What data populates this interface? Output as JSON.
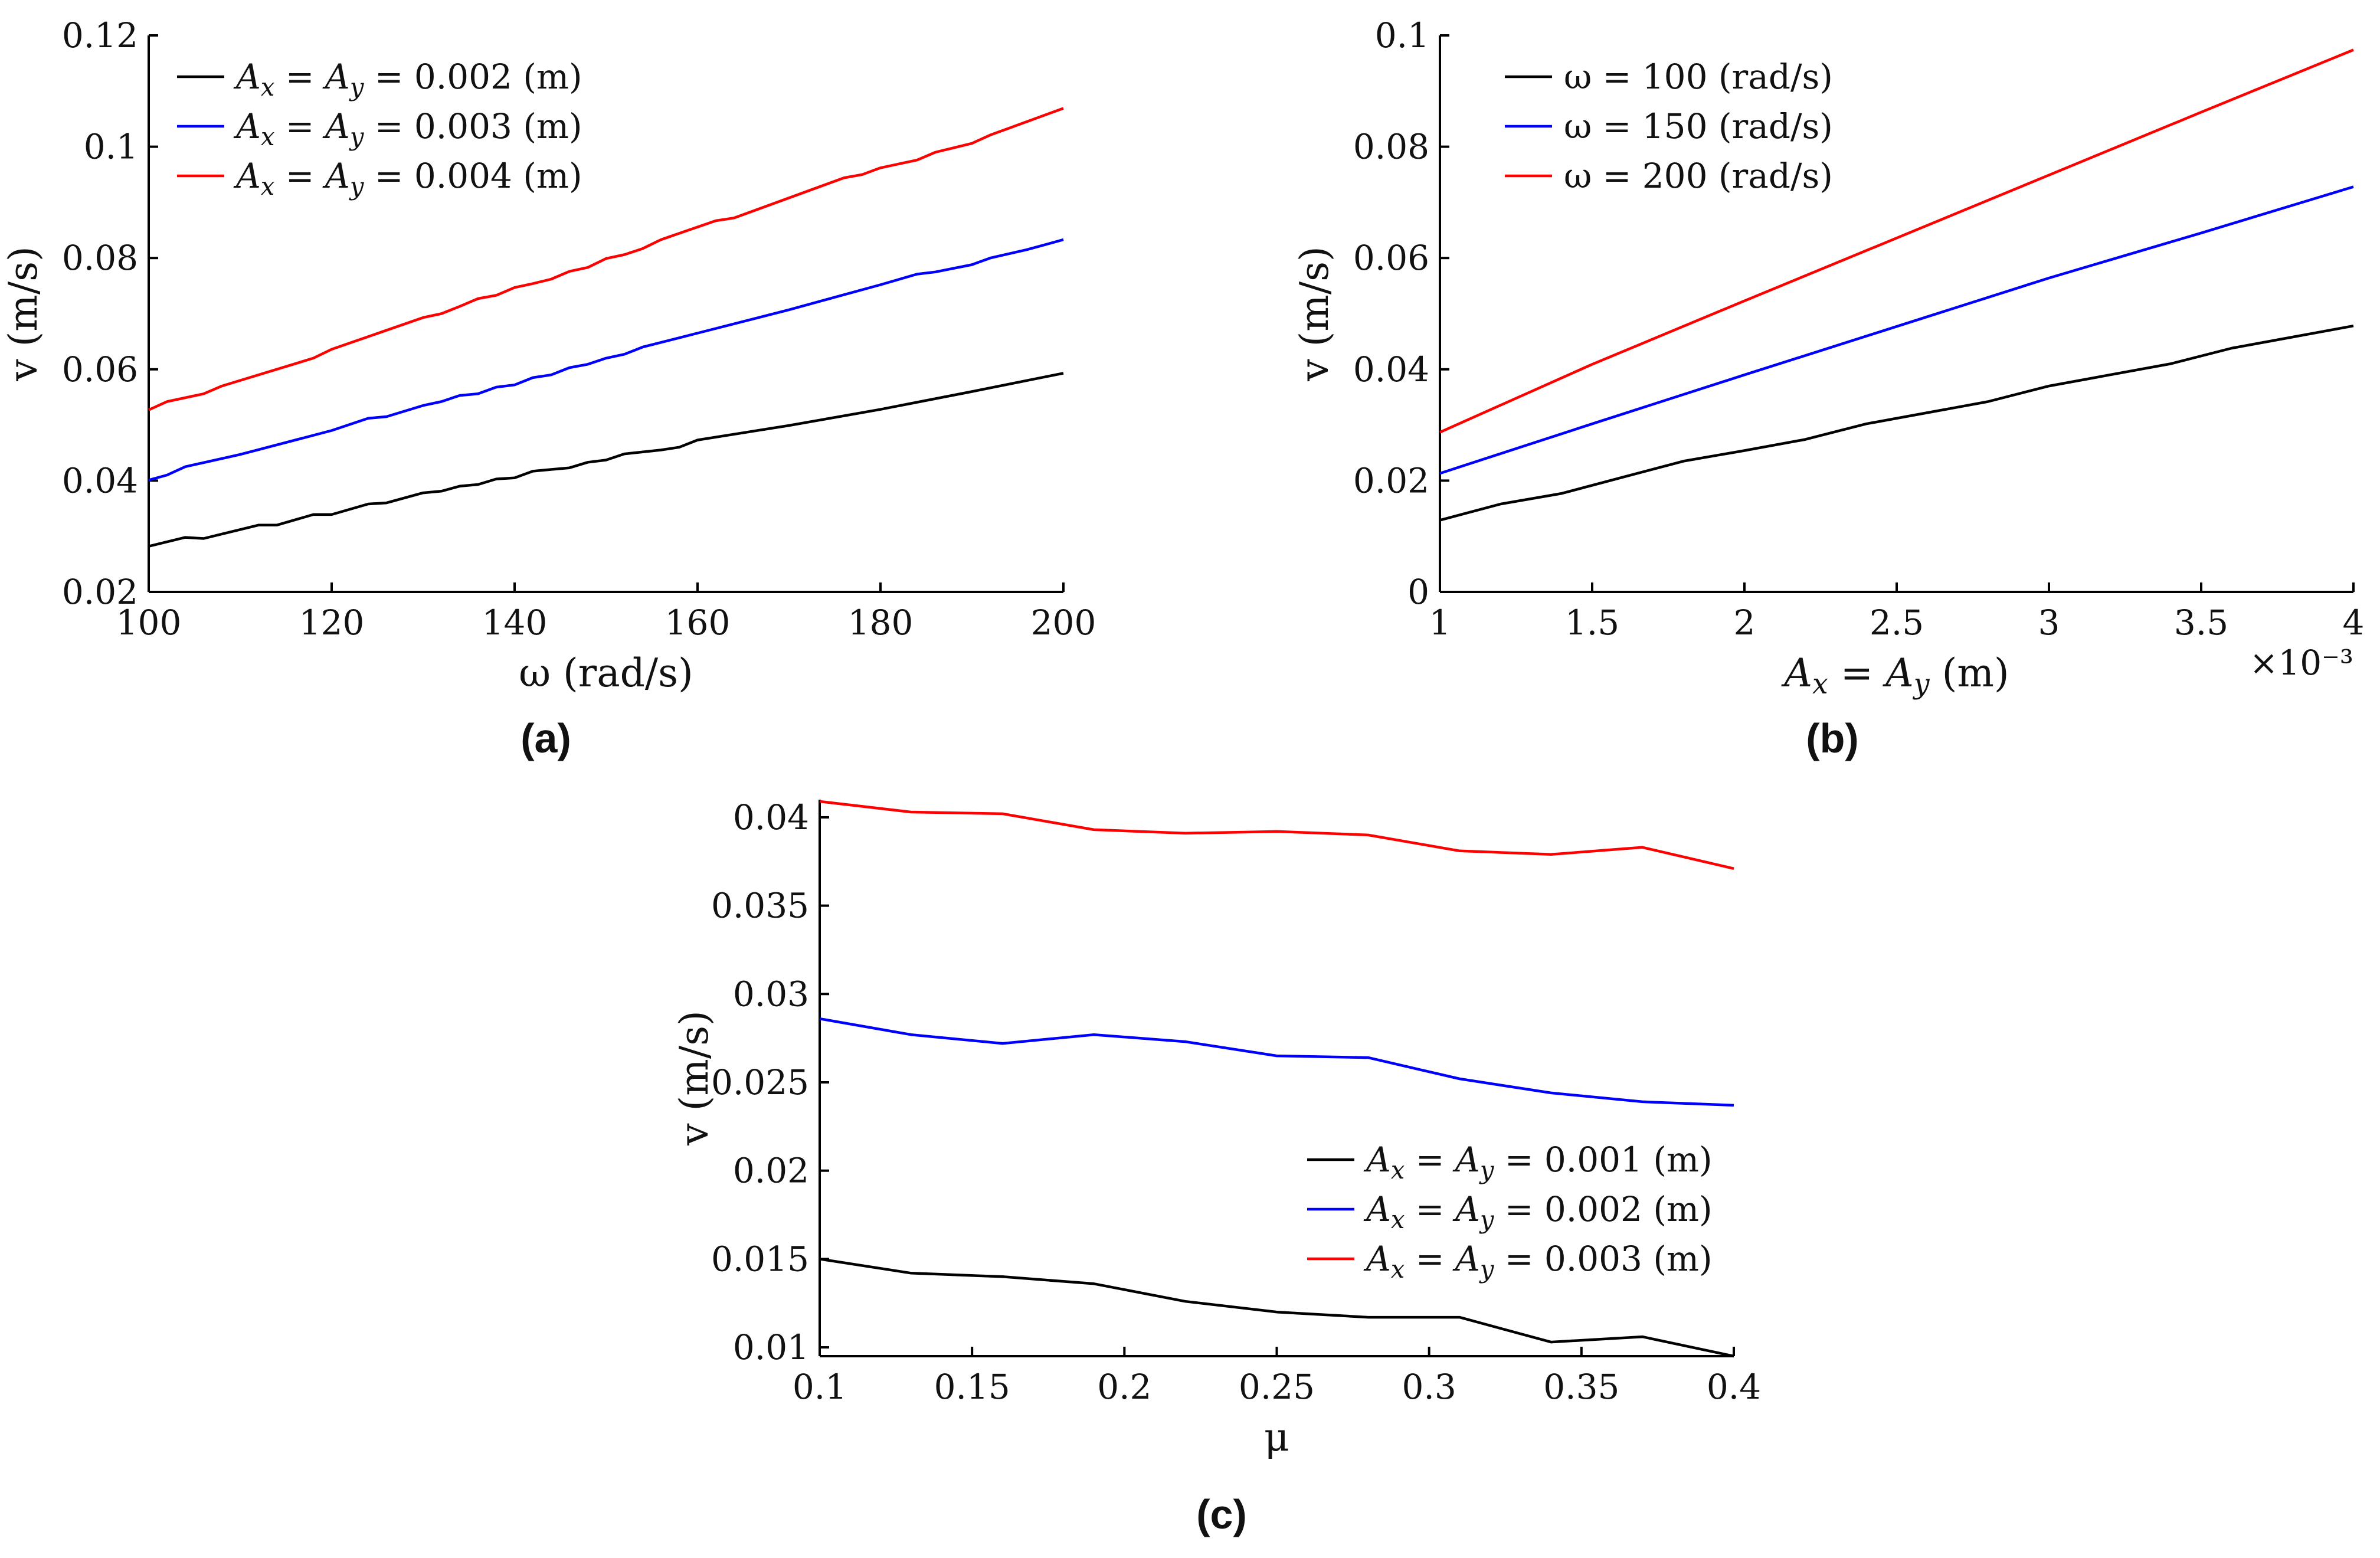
{
  "chart_data": [
    {
      "id": "a",
      "type": "line",
      "panel_label": "(a)",
      "xlabel": "ω (rad/s)",
      "ylabel": "v (m/s)",
      "xlim": [
        100,
        200
      ],
      "ylim": [
        0.02,
        0.12
      ],
      "xticks": [
        "100",
        "120",
        "140",
        "160",
        "180",
        "200"
      ],
      "yticks": [
        "0.02",
        "0.04",
        "0.06",
        "0.08",
        "0.1",
        "0.12"
      ],
      "legend_position": "top-left",
      "series": [
        {
          "name": "A_x = A_y = 0.002 (m)",
          "color": "#000000",
          "x": [
            100,
            104,
            106,
            112,
            114,
            118,
            120,
            124,
            126,
            130,
            132,
            134,
            136,
            138,
            140,
            142,
            144,
            146,
            148,
            150,
            152,
            156,
            158,
            160,
            170,
            180,
            190,
            200
          ],
          "y": [
            0.0282,
            0.0298,
            0.0296,
            0.032,
            0.032,
            0.0339,
            0.0339,
            0.0358,
            0.036,
            0.0378,
            0.0381,
            0.039,
            0.0393,
            0.0403,
            0.0405,
            0.0417,
            0.042,
            0.0423,
            0.0433,
            0.0437,
            0.0448,
            0.0455,
            0.046,
            0.0473,
            0.0499,
            0.0528,
            0.056,
            0.0593
          ]
        },
        {
          "name": "A_x = A_y = 0.003 (m)",
          "color": "#0000ff",
          "x": [
            100,
            102,
            104,
            110,
            120,
            124,
            126,
            130,
            132,
            134,
            136,
            138,
            140,
            142,
            144,
            146,
            148,
            150,
            152,
            154,
            160,
            170,
            180,
            184,
            186,
            190,
            192,
            196,
            200
          ],
          "y": [
            0.0401,
            0.041,
            0.0425,
            0.0447,
            0.049,
            0.0512,
            0.0515,
            0.0535,
            0.0542,
            0.0553,
            0.0556,
            0.0568,
            0.0572,
            0.0585,
            0.059,
            0.0603,
            0.0609,
            0.062,
            0.0627,
            0.064,
            0.0665,
            0.0707,
            0.0752,
            0.0771,
            0.0775,
            0.0788,
            0.08,
            0.0815,
            0.0833
          ]
        },
        {
          "name": "A_x = A_y = 0.004 (m)",
          "color": "#ff0000",
          "x": [
            100,
            102,
            106,
            108,
            118,
            120,
            130,
            132,
            134,
            136,
            138,
            140,
            142,
            144,
            146,
            148,
            150,
            152,
            154,
            156,
            162,
            164,
            176,
            178,
            180,
            184,
            186,
            190,
            192,
            194,
            200
          ],
          "y": [
            0.0527,
            0.0542,
            0.0556,
            0.057,
            0.062,
            0.0636,
            0.0693,
            0.07,
            0.0713,
            0.0727,
            0.0733,
            0.0747,
            0.0754,
            0.0762,
            0.0776,
            0.0783,
            0.0799,
            0.0806,
            0.0817,
            0.0833,
            0.0867,
            0.0872,
            0.0944,
            0.095,
            0.0962,
            0.0976,
            0.099,
            0.1006,
            0.1021,
            0.1033,
            0.1069
          ]
        }
      ]
    },
    {
      "id": "b",
      "type": "line",
      "panel_label": "(b)",
      "xlabel": "A_x = A_y (m)",
      "ylabel": "v (m/s)",
      "x_multiplier": "×10⁻³",
      "xlim": [
        1,
        4
      ],
      "ylim": [
        0,
        0.1
      ],
      "xticks": [
        "1",
        "1.5",
        "2",
        "2.5",
        "3",
        "3.5",
        "4"
      ],
      "yticks": [
        "0",
        "0.02",
        "0.04",
        "0.06",
        "0.08",
        "0.1"
      ],
      "legend_position": "top-left",
      "series": [
        {
          "name": "ω = 100 (rad/s)",
          "color": "#000000",
          "x": [
            1.0,
            1.2,
            1.4,
            1.6,
            1.8,
            2.0,
            2.2,
            2.4,
            2.6,
            2.8,
            3.0,
            3.2,
            3.4,
            3.6,
            3.8,
            4.0
          ],
          "y": [
            0.0129,
            0.0158,
            0.0177,
            0.0206,
            0.0235,
            0.0254,
            0.0274,
            0.0302,
            0.0322,
            0.0342,
            0.037,
            0.039,
            0.041,
            0.0438,
            0.0458,
            0.0478
          ]
        },
        {
          "name": "ω = 150 (rad/s)",
          "color": "#0000ff",
          "x": [
            1.0,
            1.5,
            2.0,
            2.5,
            3.0,
            3.5,
            4.0
          ],
          "y": [
            0.0213,
            0.0302,
            0.039,
            0.0477,
            0.0564,
            0.0645,
            0.0728
          ]
        },
        {
          "name": "ω = 200 (rad/s)",
          "color": "#ff0000",
          "x": [
            1.0,
            1.5,
            2.0,
            2.5,
            3.0,
            3.5,
            4.0
          ],
          "y": [
            0.0287,
            0.0409,
            0.0523,
            0.0636,
            0.0749,
            0.0862,
            0.0974
          ]
        }
      ]
    },
    {
      "id": "c",
      "type": "line",
      "panel_label": "(c)",
      "xlabel": "μ",
      "ylabel": "v (m/s)",
      "xlim": [
        0.1,
        0.4
      ],
      "ylim": [
        0.0095,
        0.041
      ],
      "xticks": [
        "0.1",
        "0.15",
        "0.2",
        "0.25",
        "0.3",
        "0.35",
        "0.4"
      ],
      "yticks": [
        "0.01",
        "0.015",
        "0.02",
        "0.025",
        "0.03",
        "0.035",
        "0.04"
      ],
      "legend_position": "bottom-right",
      "series": [
        {
          "name": "A_x = A_y = 0.001 (m)",
          "color": "#000000",
          "x": [
            0.1,
            0.13,
            0.16,
            0.19,
            0.22,
            0.25,
            0.28,
            0.31,
            0.34,
            0.37,
            0.4
          ],
          "y": [
            0.015,
            0.0142,
            0.014,
            0.0136,
            0.0126,
            0.012,
            0.0117,
            0.0117,
            0.0103,
            0.0106,
            0.0095
          ]
        },
        {
          "name": "A_x = A_y = 0.002 (m)",
          "color": "#0000ff",
          "x": [
            0.1,
            0.13,
            0.16,
            0.19,
            0.22,
            0.25,
            0.28,
            0.31,
            0.34,
            0.37,
            0.4
          ],
          "y": [
            0.0286,
            0.0277,
            0.0272,
            0.0277,
            0.0273,
            0.0265,
            0.0264,
            0.0252,
            0.0244,
            0.0239,
            0.0237
          ]
        },
        {
          "name": "A_x = A_y = 0.003 (m)",
          "color": "#ff0000",
          "x": [
            0.1,
            0.13,
            0.16,
            0.19,
            0.22,
            0.25,
            0.28,
            0.31,
            0.34,
            0.37,
            0.4
          ],
          "y": [
            0.0409,
            0.0403,
            0.0402,
            0.0393,
            0.0391,
            0.0392,
            0.039,
            0.0381,
            0.0379,
            0.0383,
            0.0371
          ]
        }
      ]
    }
  ]
}
